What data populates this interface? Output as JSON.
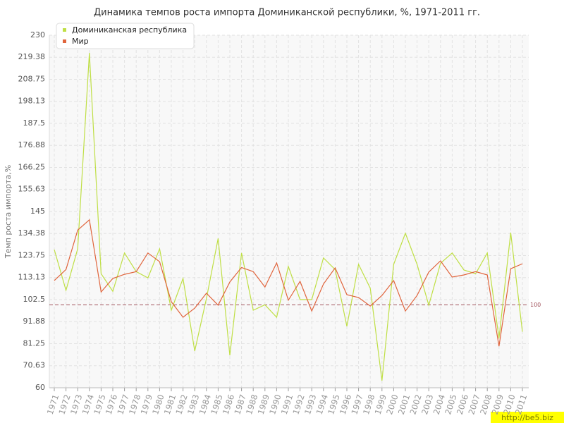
{
  "chart_data": {
    "type": "line",
    "title": "Динамика темпов роста импорта Доминиканской республики, %, 1971-2011 гг.",
    "y_label": "Темп роста импорта,%",
    "categories": [
      "1971",
      "1972",
      "1973",
      "1974",
      "1975",
      "1976",
      "1977",
      "1978",
      "1979",
      "1980",
      "1981",
      "1982",
      "1983",
      "1984",
      "1985",
      "1986",
      "1987",
      "1988",
      "1989",
      "1990",
      "1991",
      "1992",
      "1993",
      "1994",
      "1995",
      "1996",
      "1997",
      "1998",
      "1999",
      "2000",
      "2001",
      "2002",
      "2003",
      "2004",
      "2005",
      "2006",
      "2007",
      "2008",
      "2009",
      "2010",
      "2011"
    ],
    "series": [
      {
        "name": "Доминиканская республика",
        "color": "#bfdf45",
        "values": [
          126.6,
          107,
          127,
          221.5,
          115,
          106.5,
          125,
          116,
          113,
          127,
          97.4,
          112.7,
          77.7,
          103,
          132,
          75.6,
          125,
          97.4,
          100,
          94,
          118.5,
          102.5,
          102.5,
          122.6,
          117,
          89.6,
          119.5,
          108,
          63.4,
          119.5,
          134.5,
          119.5,
          99.8,
          120,
          125,
          116.8,
          115,
          125,
          83.8,
          134.8,
          87
        ]
      },
      {
        "name": "Мир",
        "color": "#e0643c",
        "values": [
          111.7,
          117,
          136,
          141,
          106.2,
          112.7,
          114.7,
          116,
          125,
          120.8,
          101.5,
          94,
          98.4,
          105.6,
          99.8,
          111,
          118,
          116,
          108.6,
          120.2,
          102.2,
          111.3,
          97,
          110,
          117.8,
          104.9,
          103.5,
          99.4,
          104.5,
          111.7,
          97,
          104.5,
          115.8,
          121.2,
          113.4,
          114.4,
          116,
          114.4,
          80,
          117.4,
          119.8
        ]
      }
    ],
    "ylim": [
      60,
      230
    ],
    "yticks": [
      60,
      70.63,
      81.25,
      91.88,
      102.5,
      113.13,
      123.75,
      134.38,
      145,
      155.63,
      166.25,
      176.88,
      187.5,
      198.13,
      208.75,
      219.38,
      230
    ],
    "grid": true,
    "reference_line": 100,
    "reference_color": "#a0505a",
    "legend": "top-left",
    "watermark": "http://be5.biz"
  }
}
